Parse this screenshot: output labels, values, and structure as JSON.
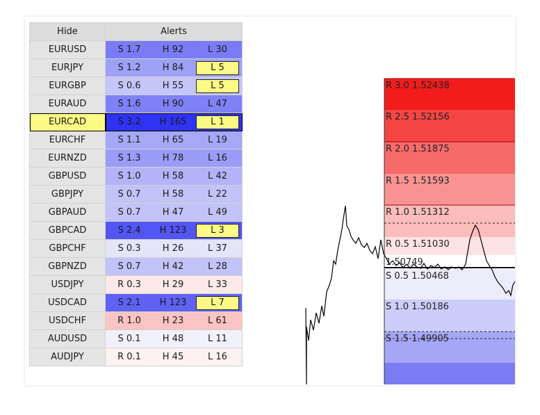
{
  "table": {
    "headers": {
      "hide": "Hide",
      "alerts": "Alerts"
    },
    "rows": [
      {
        "symbol": "EURUSD",
        "s": "S 1.7",
        "h": "H 92",
        "l": "L 30",
        "color": "#7a7cf6",
        "lyellow": false,
        "selected": false
      },
      {
        "symbol": "EURJPY",
        "s": "S 1.2",
        "h": "H 84",
        "l": "L 5",
        "color": "#9fa1f7",
        "lyellow": true,
        "selected": false
      },
      {
        "symbol": "EURGBP",
        "s": "S 0.6",
        "h": "H 55",
        "l": "L 5",
        "color": "#c5c6f8",
        "lyellow": true,
        "selected": false
      },
      {
        "symbol": "EURAUD",
        "s": "S 1.6",
        "h": "H 90",
        "l": "L 47",
        "color": "#7f81f6",
        "lyellow": false,
        "selected": false
      },
      {
        "symbol": "EURCAD",
        "s": "S 3.2",
        "h": "H 165",
        "l": "L 1",
        "color": "#2f33f3",
        "lyellow": true,
        "selected": true
      },
      {
        "symbol": "EURCHF",
        "s": "S 1.1",
        "h": "H 65",
        "l": "L 19",
        "color": "#a6a8f7",
        "lyellow": false,
        "selected": false
      },
      {
        "symbol": "EURNZD",
        "s": "S 1.3",
        "h": "H 78",
        "l": "L 16",
        "color": "#9a9cf7",
        "lyellow": false,
        "selected": false
      },
      {
        "symbol": "GBPUSD",
        "s": "S 1.0",
        "h": "H 58",
        "l": "L 42",
        "color": "#b2b3f8",
        "lyellow": false,
        "selected": false
      },
      {
        "symbol": "GBPJPY",
        "s": "S 0.7",
        "h": "H 58",
        "l": "L 22",
        "color": "#c2c3f8",
        "lyellow": false,
        "selected": false
      },
      {
        "symbol": "GBPAUD",
        "s": "S 0.7",
        "h": "H 47",
        "l": "L 49",
        "color": "#c2c3f8",
        "lyellow": false,
        "selected": false
      },
      {
        "symbol": "GBPCAD",
        "s": "S 2.4",
        "h": "H 123",
        "l": "L 3",
        "color": "#5256f4",
        "lyellow": true,
        "selected": false
      },
      {
        "symbol": "GBPCHF",
        "s": "S 0.3",
        "h": "H 26",
        "l": "L 37",
        "color": "#e5e5fa",
        "lyellow": false,
        "selected": false
      },
      {
        "symbol": "GBPNZD",
        "s": "S 0.7",
        "h": "H 42",
        "l": "L 28",
        "color": "#c2c3f8",
        "lyellow": false,
        "selected": false
      },
      {
        "symbol": "USDJPY",
        "s": "R 0.3",
        "h": "H 29",
        "l": "L 33",
        "color": "#fde9e9",
        "lyellow": false,
        "selected": false
      },
      {
        "symbol": "USDCAD",
        "s": "S 2.1",
        "h": "H 123",
        "l": "L 7",
        "color": "#5f62f5",
        "lyellow": true,
        "selected": false
      },
      {
        "symbol": "USDCHF",
        "s": "R 1.0",
        "h": "H 23",
        "l": "L 61",
        "color": "#fbc4c4",
        "lyellow": false,
        "selected": false
      },
      {
        "symbol": "AUDUSD",
        "s": "S 0.1",
        "h": "H 48",
        "l": "L 11",
        "color": "#f1f1fc",
        "lyellow": false,
        "selected": false
      },
      {
        "symbol": "AUDJPY",
        "s": "R 0.1",
        "h": "H 45",
        "l": "L 16",
        "color": "#fdf1f1",
        "lyellow": false,
        "selected": false
      }
    ]
  },
  "levels": [
    {
      "label": "R 3.0 1.52438",
      "color": "#f31c1c"
    },
    {
      "label": "R 2.5 1.52156",
      "color": "#f54444"
    },
    {
      "label": "R 2.0 1.51875",
      "color": "#f76a6a"
    },
    {
      "label": "R 1.5 1.51593",
      "color": "#f99393"
    },
    {
      "label": "R 1.0 1.51312",
      "color": "#fbbcbc"
    },
    {
      "label": "R 0.5 1.51030",
      "color": "#fde3e3"
    },
    {
      "label": "1.50749",
      "color": "#ffffff"
    },
    {
      "label": "S 0.5 1.50468",
      "color": "#ececfb"
    },
    {
      "label": "S 1.0 1.50186",
      "color": "#cdcdf9"
    },
    {
      "label": "S 1.5 1.49905",
      "color": "#a6a6f6"
    },
    {
      "label": "",
      "color": "#7b7bf4"
    }
  ],
  "colors": {
    "yellow": "#fcfa86",
    "header": "#dcdcdc",
    "symbol_bg": "#e4e4e4"
  }
}
